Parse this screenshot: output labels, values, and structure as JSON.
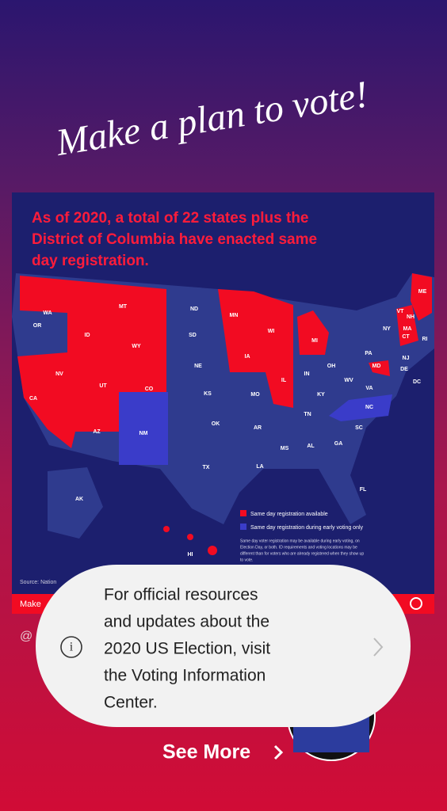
{
  "title": "Make a plan to vote!",
  "card": {
    "headline": [
      "As of 2020, a total of 22 states plus the",
      "District of Columbia have enacted same",
      "day registration."
    ],
    "state_labels": [
      "WA",
      "MT",
      "ND",
      "MN",
      "OR",
      "ID",
      "WY",
      "SD",
      "WI",
      "MI",
      "NE",
      "IA",
      "IL",
      "IN",
      "OH",
      "PA",
      "NY",
      "VT",
      "NH",
      "ME",
      "MA",
      "RI",
      "CT",
      "NJ",
      "DE",
      "MD",
      "DC",
      "NV",
      "UT",
      "CO",
      "CA",
      "KS",
      "MO",
      "KY",
      "WV",
      "VA",
      "NC",
      "TN",
      "AZ",
      "NM",
      "OK",
      "AR",
      "SC",
      "MS",
      "AL",
      "GA",
      "TX",
      "LA",
      "FL",
      "AK",
      "HI"
    ],
    "legend": [
      "Same day registration available",
      "Same day registration during early voting only"
    ],
    "note": [
      "Same day voter registration may be available during early voting, on",
      "Election Day, or both. ID requirements and voting locations may be",
      "different than for voters who are already registered when they show up",
      "to vote."
    ],
    "source": "Source: Nation",
    "footer": "Make"
  },
  "handle": "@",
  "popup": {
    "lines": [
      "For official resources",
      "and updates about the",
      "2020 US Election, visit",
      "the Voting Information",
      "Center."
    ]
  },
  "see_more": "See More"
}
